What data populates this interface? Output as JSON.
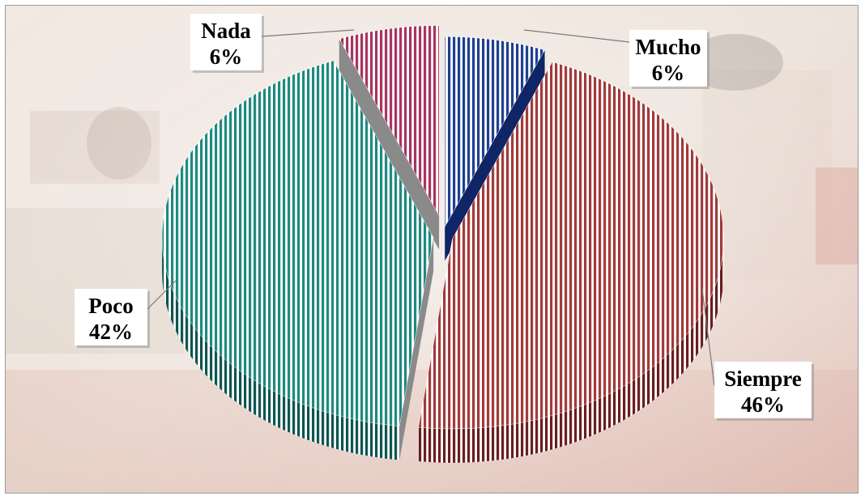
{
  "chart_data": {
    "type": "pie",
    "style": "3d-exploded",
    "title": "",
    "labels": [
      "Mucho",
      "Siempre",
      "Poco",
      "Nada"
    ],
    "values": [
      6,
      46,
      42,
      6
    ],
    "percent_labels": [
      "6%",
      "46%",
      "42%",
      "6%"
    ],
    "colors": [
      "#1f3f8f",
      "#a23a3a",
      "#1e8a80",
      "#a8345f"
    ],
    "dark_colors": [
      "#0f2566",
      "#6a1d1d",
      "#0e5550",
      "#6a1c3a"
    ],
    "stripes": true,
    "legend": "none",
    "data_labels": "callouts"
  }
}
